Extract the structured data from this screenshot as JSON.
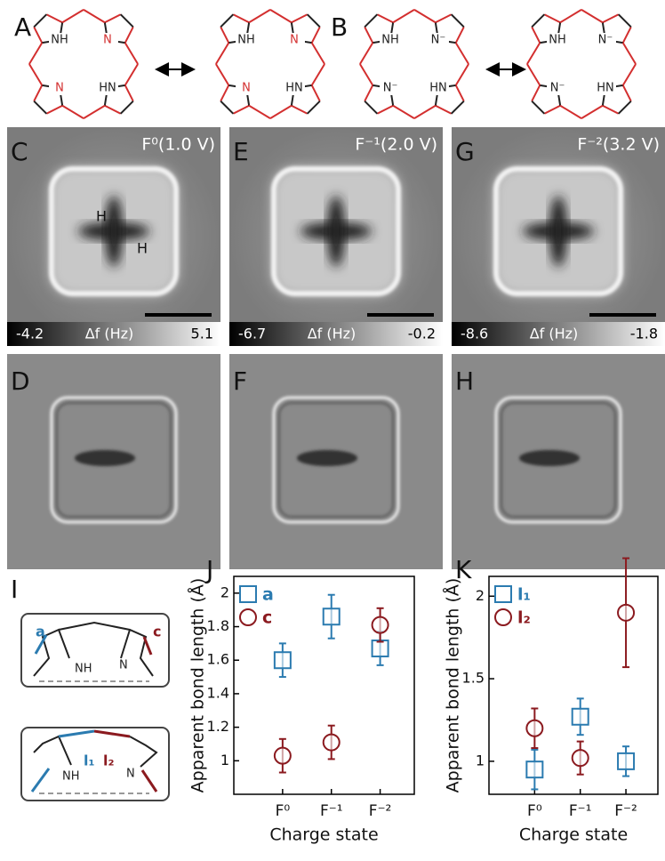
{
  "panel_labels": [
    "A",
    "B",
    "C",
    "D",
    "E",
    "F",
    "G",
    "H",
    "I",
    "J",
    "K"
  ],
  "structures": [
    {
      "atoms": [
        "NH",
        "N",
        "N",
        "HN"
      ]
    },
    {
      "atoms": [
        "NH",
        "N",
        "N",
        "HN"
      ]
    },
    {
      "atoms": [
        "NH",
        "N⁻",
        "N⁻",
        "HN"
      ]
    },
    {
      "atoms": [
        "NH",
        "N⁻",
        "N⁻",
        "HN"
      ]
    }
  ],
  "images": [
    {
      "state": "F⁰(1.0 V)",
      "cbar_min": -4.2,
      "cbar_label": "Δf (Hz)",
      "cbar_max": 5.1,
      "atoms": [
        "H",
        "H"
      ]
    },
    {
      "state": "F⁻¹(2.0 V)",
      "cbar_min": -6.7,
      "cbar_label": "Δf (Hz)",
      "cbar_max": -0.2
    },
    {
      "state": "F⁻²(3.2 V)",
      "cbar_min": -8.6,
      "cbar_label": "Δf (Hz)",
      "cbar_max": -1.8
    }
  ],
  "diagram": {
    "top": {
      "bonds": [
        "a",
        "c"
      ],
      "atoms": [
        "NH",
        "N"
      ]
    },
    "bottom": {
      "bonds": [
        "l₁",
        "l₂"
      ],
      "atoms": [
        "NH",
        "N"
      ]
    }
  },
  "chart_data": [
    {
      "type": "errorbar",
      "y_label": "Apparent bond length (Å)",
      "x_label": "Charge state",
      "categories": [
        "F⁰",
        "F⁻¹",
        "F⁻²"
      ],
      "ylim": [
        0.8,
        2.1
      ],
      "yticks": [
        1,
        1.2,
        1.4,
        1.6,
        1.8,
        2
      ],
      "series": [
        {
          "name": "a",
          "color": "#2b7bb0",
          "marker": "square",
          "values": [
            1.6,
            1.86,
            1.67
          ],
          "errors": [
            0.1,
            0.13,
            0.1
          ]
        },
        {
          "name": "c",
          "color": "#8b1a1f",
          "marker": "circle",
          "values": [
            1.03,
            1.11,
            1.81
          ],
          "errors": [
            0.1,
            0.1,
            0.1
          ]
        }
      ]
    },
    {
      "type": "errorbar",
      "y_label": "Apparent bond length (Å)",
      "x_label": "Charge state",
      "categories": [
        "F⁰",
        "F⁻¹",
        "F⁻²"
      ],
      "ylim": [
        0.8,
        2.12
      ],
      "yticks": [
        1,
        1.5,
        2
      ],
      "series": [
        {
          "name": "l₁",
          "color": "#2b7bb0",
          "marker": "square",
          "values": [
            0.95,
            1.27,
            1.0
          ],
          "errors": [
            0.12,
            0.11,
            0.09
          ]
        },
        {
          "name": "l₂",
          "color": "#8b1a1f",
          "marker": "circle",
          "values": [
            1.2,
            1.02,
            1.9
          ],
          "errors": [
            0.12,
            0.1,
            0.33
          ]
        }
      ]
    }
  ]
}
